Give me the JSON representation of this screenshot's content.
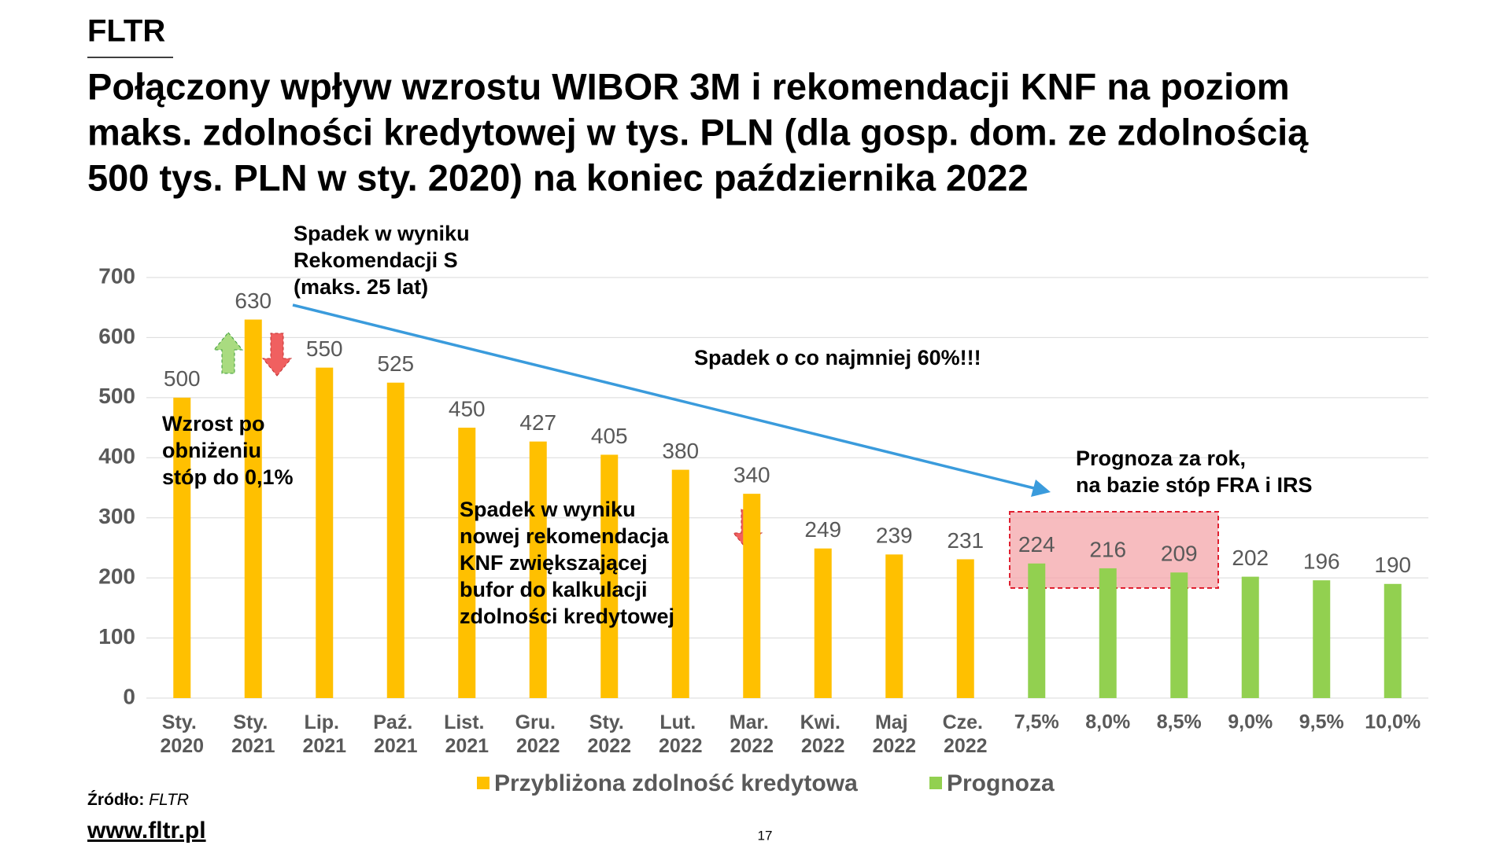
{
  "header": {
    "brand": "FLTR"
  },
  "chart_data": {
    "type": "bar",
    "title": [
      "Połączony wpływ wzrostu WIBOR 3M i rekomendacji KNF na poziom",
      "maks. zdolności kredytowej w tys. PLN (dla gosp. dom. ze zdolnością",
      "500 tys. PLN w sty. 2020) na koniec października 2022"
    ],
    "categories": [
      "Sty. 2020",
      "Sty. 2021",
      "Lip. 2021",
      "Paź. 2021",
      "List. 2021",
      "Gru. 2022",
      "Sty. 2022",
      "Lut. 2022",
      "Mar. 2022",
      "Kwi. 2022",
      "Maj 2022",
      "Cze. 2022",
      "7,5%",
      "8,0%",
      "8,5%",
      "9,0%",
      "9,5%",
      "10,0%"
    ],
    "series": [
      {
        "name": "Przybliżona zdolność kredytowa",
        "color": "#FFC000",
        "values": [
          500,
          630,
          550,
          525,
          450,
          427,
          405,
          380,
          340,
          249,
          239,
          231,
          null,
          null,
          null,
          null,
          null,
          null
        ]
      },
      {
        "name": "Prognoza",
        "color": "#92D050",
        "values": [
          null,
          null,
          null,
          null,
          null,
          null,
          null,
          null,
          null,
          null,
          null,
          null,
          224,
          216,
          209,
          202,
          196,
          190
        ]
      }
    ],
    "ylim": [
      0,
      700
    ],
    "yticks": [
      0,
      100,
      200,
      300,
      400,
      500,
      600,
      700
    ],
    "grid": true,
    "annotations": [
      [
        "Spadek w wyniku",
        "Rekomendacji S",
        "(maks. 25 lat)"
      ],
      [
        "Spadek o co najmniej 60%!!!"
      ],
      [
        "Prognoza za rok,",
        "na bazie stóp FRA i IRS"
      ],
      [
        "Wzrost po",
        "obniżeniu",
        "stóp do 0,1%"
      ],
      [
        "Spadek w wyniku",
        "nowej rekomendacja",
        "KNF zwiększającej",
        "bufor do kalkulacji",
        "zdolności kredytowej"
      ]
    ]
  },
  "footer": {
    "source_label": "Źródło:",
    "source": "FLTR",
    "url": "www.fltr.pl",
    "page": "17"
  }
}
